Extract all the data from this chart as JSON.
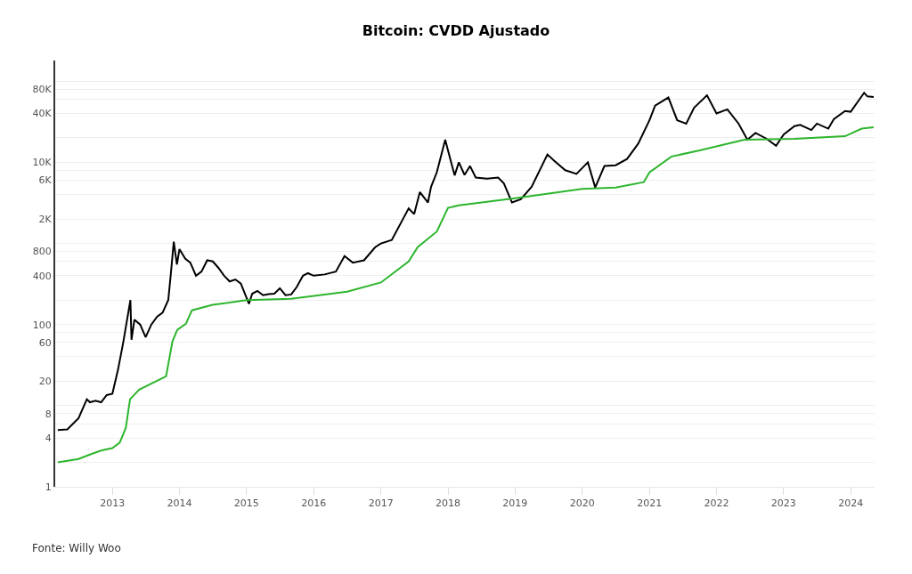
{
  "chart_data": {
    "type": "line",
    "title": "Bitcoin: CVDD Ajustado",
    "annotations": [
      "Fonte: Willy Woo"
    ],
    "xlim": [
      "2012-02-25",
      "2024-05-10"
    ],
    "xticks": [
      "2013",
      "2014",
      "2015",
      "2016",
      "2017",
      "2018",
      "2019",
      "2020",
      "2021",
      "2022",
      "2023",
      "2024"
    ],
    "ylim": [
      1,
      180000
    ],
    "log": true,
    "grid": "y",
    "marker": "none",
    "line_style": "solid",
    "yticks": [
      1,
      {
        "value": 2,
        "label": null
      },
      4,
      {
        "value": 6,
        "label": null
      },
      8,
      {
        "value": 10,
        "label": null
      },
      20,
      {
        "value": 40,
        "label": null
      },
      60,
      {
        "value": 80,
        "label": null
      },
      100,
      {
        "value": 200,
        "label": null
      },
      400,
      {
        "value": 600,
        "label": null
      },
      800,
      {
        "value": 1000,
        "label": null
      },
      {
        "value": 2000,
        "label": "2K"
      },
      {
        "value": 4000,
        "label": null
      },
      {
        "value": 6000,
        "label": "6K"
      },
      {
        "value": 8000,
        "label": null
      },
      {
        "value": 10000,
        "label": "10K"
      },
      {
        "value": 20000,
        "label": null
      },
      {
        "value": 40000,
        "label": "40K"
      },
      {
        "value": 60000,
        "label": null
      },
      {
        "value": 80000,
        "label": "80K"
      },
      {
        "value": 100000,
        "label": null
      }
    ],
    "series": [
      {
        "color": "#000000",
        "x": [
          "2012-03-10",
          "2012-05-01",
          "2012-07-01",
          "2012-08-15",
          "2012-09-01",
          "2012-10-01",
          "2012-11-01",
          "2012-12-01",
          "2013-01-01",
          "2013-02-01",
          "2013-03-01",
          "2013-04-09",
          "2013-04-15",
          "2013-05-01",
          "2013-06-01",
          "2013-07-01",
          "2013-08-01",
          "2013-09-01",
          "2013-10-01",
          "2013-11-01",
          "2013-11-15",
          "2013-12-01",
          "2013-12-18",
          "2014-01-01",
          "2014-02-01",
          "2014-03-01",
          "2014-04-01",
          "2014-05-01",
          "2014-06-01",
          "2014-07-01",
          "2014-08-01",
          "2014-09-01",
          "2014-10-01",
          "2014-11-01",
          "2014-12-01",
          "2015-01-14",
          "2015-02-01",
          "2015-03-01",
          "2015-04-01",
          "2015-05-01",
          "2015-06-01",
          "2015-07-01",
          "2015-08-01",
          "2015-09-01",
          "2015-10-01",
          "2015-11-04",
          "2015-12-01",
          "2016-01-01",
          "2016-03-01",
          "2016-05-01",
          "2016-06-17",
          "2016-08-01",
          "2016-10-01",
          "2016-12-01",
          "2017-01-01",
          "2017-03-01",
          "2017-05-01",
          "2017-06-01",
          "2017-07-01",
          "2017-08-01",
          "2017-09-14",
          "2017-10-01",
          "2017-11-01",
          "2017-12-17",
          "2018-01-01",
          "2018-02-06",
          "2018-03-01",
          "2018-04-01",
          "2018-05-01",
          "2018-06-01",
          "2018-08-01",
          "2018-10-01",
          "2018-11-01",
          "2018-12-15",
          "2019-02-01",
          "2019-04-01",
          "2019-06-26",
          "2019-08-01",
          "2019-10-01",
          "2019-12-01",
          "2020-02-01",
          "2020-03-12",
          "2020-05-01",
          "2020-07-01",
          "2020-09-01",
          "2020-11-01",
          "2021-01-01",
          "2021-02-01",
          "2021-04-14",
          "2021-06-01",
          "2021-07-20",
          "2021-09-01",
          "2021-11-10",
          "2022-01-01",
          "2022-03-01",
          "2022-05-01",
          "2022-06-18",
          "2022-08-01",
          "2022-10-01",
          "2022-11-21",
          "2023-01-01",
          "2023-03-01",
          "2023-04-01",
          "2023-06-01",
          "2023-07-01",
          "2023-09-01",
          "2023-10-01",
          "2023-12-01",
          "2024-01-01",
          "2024-03-14",
          "2024-04-01",
          "2024-05-05"
        ],
        "values": [
          5,
          5.1,
          7,
          12,
          11,
          11.5,
          11,
          13.5,
          14,
          28,
          60,
          200,
          65,
          115,
          100,
          70,
          100,
          125,
          140,
          200,
          420,
          1050,
          550,
          850,
          650,
          580,
          400,
          450,
          620,
          600,
          500,
          400,
          340,
          360,
          320,
          180,
          240,
          260,
          230,
          237,
          240,
          280,
          230,
          235,
          290,
          400,
          430,
          400,
          415,
          450,
          700,
          580,
          620,
          900,
          1000,
          1100,
          2000,
          2700,
          2300,
          4300,
          3200,
          5000,
          7500,
          19000,
          14000,
          6900,
          10000,
          7000,
          9000,
          6500,
          6300,
          6500,
          5500,
          3200,
          3500,
          5000,
          12500,
          10500,
          8000,
          7200,
          10000,
          4900,
          9000,
          9200,
          11000,
          17000,
          33000,
          50000,
          63000,
          33000,
          30000,
          47000,
          67000,
          40000,
          45000,
          30000,
          19000,
          23000,
          19500,
          16000,
          22000,
          28000,
          29000,
          25000,
          30000,
          26000,
          34000,
          43000,
          42000,
          72000,
          65000,
          64000
        ]
      },
      {
        "color": "#2db52d",
        "x": [
          "2012-03-10",
          "2012-07-01",
          "2012-09-01",
          "2012-11-01",
          "2013-01-01",
          "2013-02-10",
          "2013-03-15",
          "2013-04-07",
          "2013-05-27",
          "2013-10-20",
          "2013-11-24",
          "2013-12-20",
          "2014-02-05",
          "2014-03-10",
          "2014-07-01",
          "2015-01-01",
          "2015-09-01",
          "2016-07-01",
          "2017-01-01",
          "2017-06-01",
          "2017-07-20",
          "2017-11-01",
          "2018-01-01",
          "2018-03-01",
          "2019-01-01",
          "2020-01-01",
          "2020-07-01",
          "2020-12-01",
          "2021-01-01",
          "2021-05-01",
          "2021-10-01",
          "2022-06-01",
          "2023-03-01",
          "2023-12-01",
          "2024-03-01",
          "2024-05-05"
        ],
        "values": [
          2.0,
          2.2,
          2.5,
          2.8,
          3.0,
          3.5,
          5.3,
          12,
          15.8,
          23,
          62,
          86,
          102,
          150,
          175,
          200,
          208,
          255,
          330,
          600,
          900,
          1400,
          2750,
          2950,
          3600,
          4700,
          4900,
          5700,
          7500,
          11800,
          14000,
          19000,
          19500,
          21000,
          26000,
          27000
        ]
      }
    ]
  }
}
